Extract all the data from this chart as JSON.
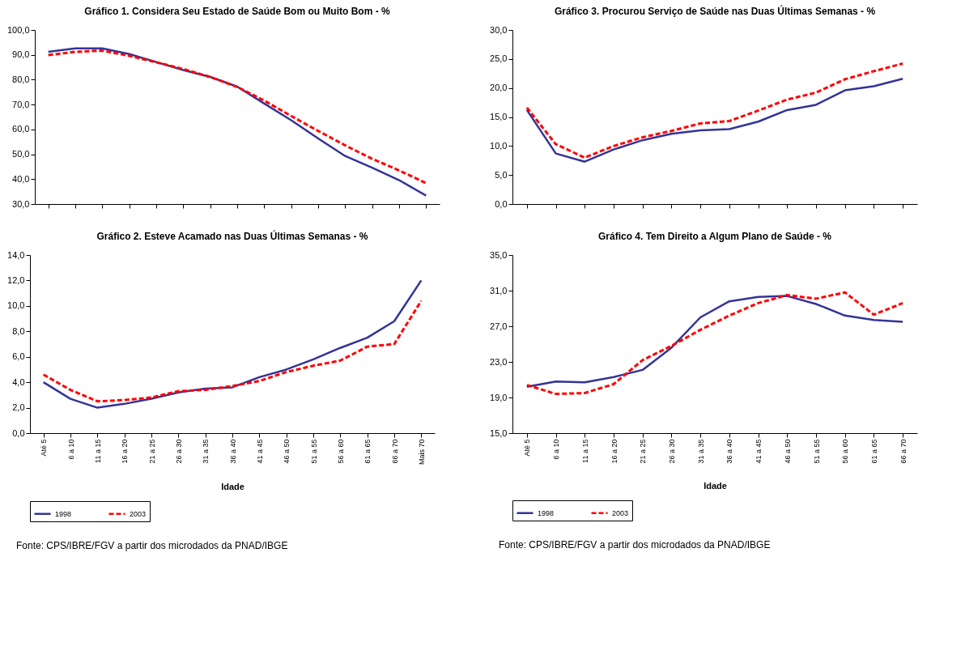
{
  "chart_data": [
    {
      "type": "line",
      "title": "Gráfico 1. Considera Seu Estado de Saúde Bom ou Muito Bom - %",
      "categories": [
        null,
        null,
        null,
        null,
        null,
        null,
        null,
        null,
        null,
        null,
        null,
        null,
        null,
        null,
        null
      ],
      "tick_labels": "y",
      "ylim": [
        30,
        100
      ],
      "yticks": [
        {
          "value": 30,
          "label": "30,0"
        },
        {
          "value": 40,
          "label": "40,0"
        },
        {
          "value": 50,
          "label": "50,0"
        },
        {
          "value": 60,
          "label": "60,0"
        },
        {
          "value": 70,
          "label": "70,0"
        },
        {
          "value": 80,
          "label": "80,0"
        },
        {
          "value": 90,
          "label": "90,0"
        },
        {
          "value": 100,
          "label": "100,0"
        }
      ],
      "series": [
        {
          "color": "#333399",
          "line_style": "solid",
          "values": [
            91.2,
            92.6,
            92.6,
            90.3,
            87.1,
            83.9,
            81.1,
            77.2,
            70.4,
            63.7,
            56.4,
            49.3,
            44.6,
            39.6,
            33.4
          ]
        },
        {
          "color": "#ff0000",
          "line_style": "dashed",
          "values": [
            89.9,
            91.2,
            91.7,
            89.6,
            87.0,
            84.3,
            81.1,
            77.1,
            71.6,
            65.4,
            59.4,
            53.6,
            48.2,
            43.5,
            38.4
          ]
        }
      ]
    },
    {
      "type": "line",
      "title": "Gráfico 3. Procurou Serviço de Saúde nas Duas Últimas Semanas - %",
      "categories": [
        null,
        null,
        null,
        null,
        null,
        null,
        null,
        null,
        null,
        null,
        null,
        null,
        null,
        null
      ],
      "tick_labels": "y",
      "ylim": [
        0,
        30
      ],
      "yticks": [
        {
          "value": 0,
          "label": "0,0"
        },
        {
          "value": 5,
          "label": "5,0"
        },
        {
          "value": 10,
          "label": "10,0"
        },
        {
          "value": 15,
          "label": "15,0"
        },
        {
          "value": 20,
          "label": "20,0"
        },
        {
          "value": 25,
          "label": "25,0"
        },
        {
          "value": 30,
          "label": "30,0"
        }
      ],
      "series": [
        {
          "color": "#333399",
          "line_style": "solid",
          "values": [
            16.2,
            8.7,
            7.3,
            9.4,
            11.0,
            12.1,
            12.7,
            12.9,
            14.2,
            16.2,
            17.1,
            19.6,
            20.3,
            21.6
          ]
        },
        {
          "color": "#ff0000",
          "line_style": "dashed",
          "values": [
            16.6,
            10.3,
            8.0,
            10.0,
            11.5,
            12.6,
            13.9,
            14.3,
            16.1,
            18.0,
            19.2,
            21.5,
            22.9,
            24.2
          ]
        }
      ]
    },
    {
      "type": "line",
      "title": "Gráfico 2. Esteve Acamado nas Duas Últimas Semanas - %",
      "xlabel": "Idade",
      "categories": [
        "Até 5",
        "6 a 10",
        "11 a 15",
        "16 a 20",
        "21 a 25",
        "26 a 30",
        "31 a 35",
        "36 a 40",
        "41 a 45",
        "46 a 50",
        "51 a 55",
        "56 a 60",
        "61 a 65",
        "66 a 70",
        "Mais 70"
      ],
      "ylim": [
        0,
        14
      ],
      "yticks": [
        {
          "value": 0,
          "label": "0,0"
        },
        {
          "value": 2,
          "label": "2,0"
        },
        {
          "value": 4,
          "label": "4,0"
        },
        {
          "value": 6,
          "label": "6,0"
        },
        {
          "value": 8,
          "label": "8,0"
        },
        {
          "value": 10,
          "label": "10,0"
        },
        {
          "value": 12,
          "label": "12,0"
        },
        {
          "value": 14,
          "label": "14,0"
        }
      ],
      "legend": "bottom",
      "annotations": [
        "Fonte: CPS/IBRE/FGV a partir dos microdados da PNAD/IBGE"
      ],
      "series": [
        {
          "name": "1998",
          "color": "#333399",
          "line_style": "solid",
          "values": [
            4.0,
            2.7,
            2.0,
            2.3,
            2.7,
            3.2,
            3.5,
            3.6,
            4.4,
            5.0,
            5.8,
            6.7,
            7.5,
            8.8,
            12.0
          ]
        },
        {
          "name": "2003",
          "color": "#ff0000",
          "line_style": "dashed",
          "values": [
            4.6,
            3.4,
            2.5,
            2.6,
            2.8,
            3.3,
            3.4,
            3.7,
            4.1,
            4.8,
            5.3,
            5.7,
            6.8,
            7.0,
            10.4
          ]
        }
      ]
    },
    {
      "type": "line",
      "title": "Gráfico 4. Tem Direito a Algum Plano de Saúde - %",
      "xlabel": "Idade",
      "categories": [
        "Até 5",
        "6 a 10",
        "11 a 15",
        "16 a 20",
        "21 a 25",
        "26 a 30",
        "31 a 35",
        "36 a 40",
        "41 a 45",
        "46 a 50",
        "51 a 55",
        "56 a 60",
        "61 a 65",
        "66 a 70"
      ],
      "ylim": [
        15,
        35
      ],
      "yticks": [
        {
          "value": 15,
          "label": "15,0"
        },
        {
          "value": 19,
          "label": "19,0"
        },
        {
          "value": 23,
          "label": "23,0"
        },
        {
          "value": 27,
          "label": "27,0"
        },
        {
          "value": 31,
          "label": "31,0"
        },
        {
          "value": 35,
          "label": "35,0"
        }
      ],
      "legend": "bottom",
      "annotations": [
        "Fonte: CPS/IBRE/FGV a partir dos microdados da PNAD/IBGE"
      ],
      "series": [
        {
          "name": "1998",
          "color": "#333399",
          "line_style": "solid",
          "values": [
            20.2,
            20.8,
            20.7,
            21.3,
            22.1,
            24.6,
            28.0,
            29.8,
            30.3,
            30.4,
            29.5,
            28.2,
            27.7,
            27.5
          ]
        },
        {
          "name": "2003",
          "color": "#ff0000",
          "line_style": "dashed",
          "values": [
            20.4,
            19.4,
            19.5,
            20.5,
            23.2,
            24.8,
            26.6,
            28.2,
            29.6,
            30.5,
            30.1,
            30.8,
            28.3,
            29.6
          ]
        }
      ]
    }
  ]
}
